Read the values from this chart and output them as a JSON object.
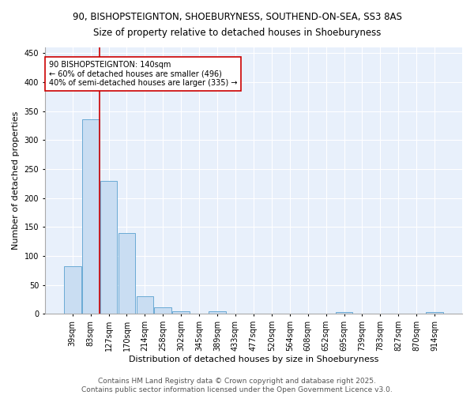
{
  "title_line1": "90, BISHOPSTEIGNTON, SHOEBURYNESS, SOUTHEND-ON-SEA, SS3 8AS",
  "title_line2": "Size of property relative to detached houses in Shoeburyness",
  "xlabel": "Distribution of detached houses by size in Shoeburyness",
  "ylabel": "Number of detached properties",
  "categories": [
    "39sqm",
    "83sqm",
    "127sqm",
    "170sqm",
    "214sqm",
    "258sqm",
    "302sqm",
    "345sqm",
    "389sqm",
    "433sqm",
    "477sqm",
    "520sqm",
    "564sqm",
    "608sqm",
    "652sqm",
    "695sqm",
    "739sqm",
    "783sqm",
    "827sqm",
    "870sqm",
    "914sqm"
  ],
  "values": [
    83,
    336,
    230,
    140,
    30,
    11,
    4,
    0,
    5,
    0,
    1,
    0,
    1,
    0,
    0,
    3,
    0,
    0,
    0,
    1,
    3
  ],
  "bar_color": "#c9ddf2",
  "bar_edge_color": "#6aaad4",
  "vline_color": "#cc0000",
  "annotation_text": "90 BISHOPSTEIGNTON: 140sqm\n← 60% of detached houses are smaller (496)\n40% of semi-detached houses are larger (335) →",
  "annotation_box_color": "white",
  "annotation_box_edge": "#cc0000",
  "ylim": [
    0,
    460
  ],
  "yticks": [
    0,
    50,
    100,
    150,
    200,
    250,
    300,
    350,
    400,
    450
  ],
  "footer_line1": "Contains HM Land Registry data © Crown copyright and database right 2025.",
  "footer_line2": "Contains public sector information licensed under the Open Government Licence v3.0.",
  "bg_color": "#e8f0fb",
  "grid_color": "#ffffff",
  "title_fontsize": 8.5,
  "axis_label_fontsize": 8,
  "tick_fontsize": 7,
  "footer_fontsize": 6.5,
  "annotation_fontsize": 7
}
